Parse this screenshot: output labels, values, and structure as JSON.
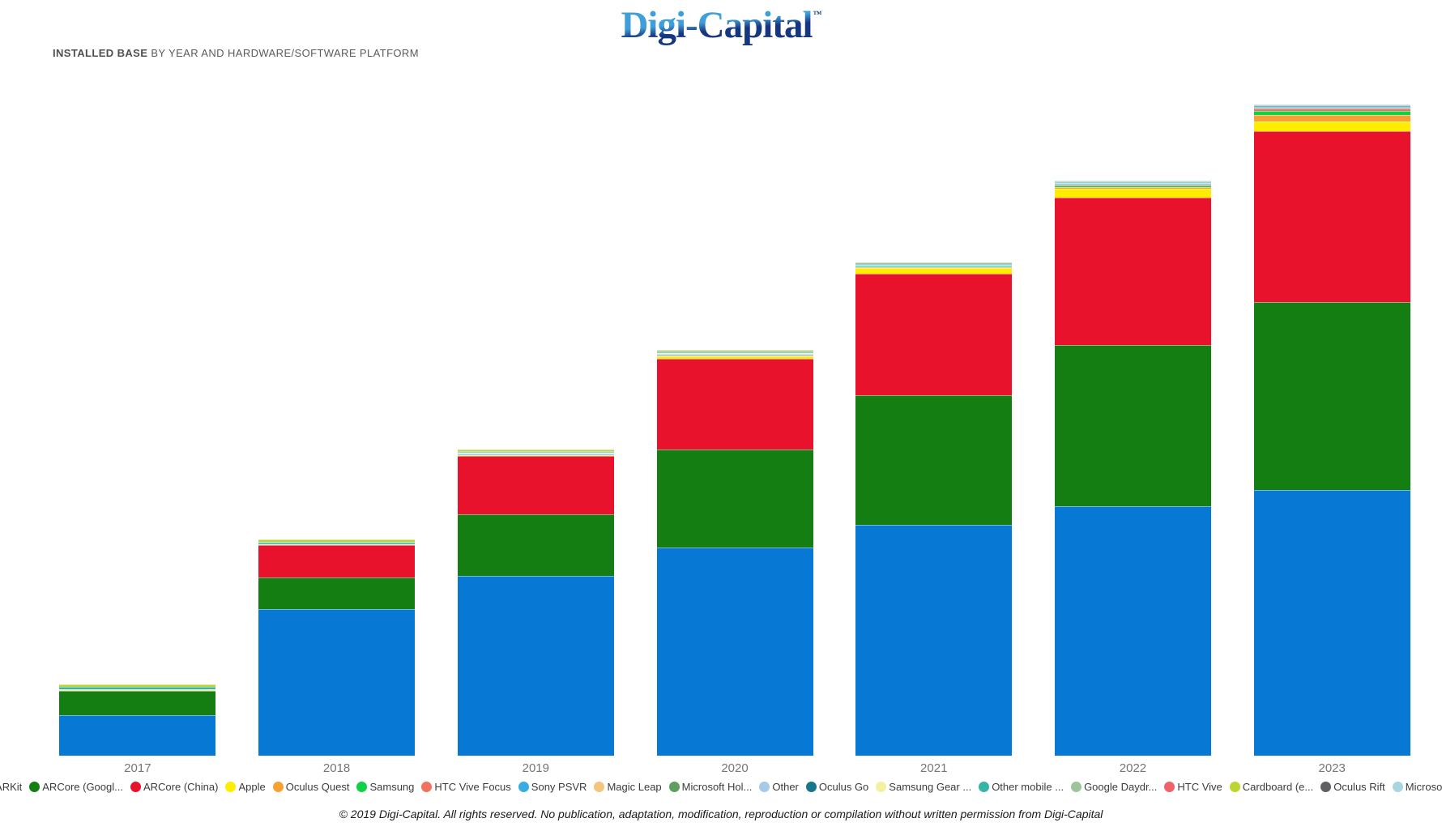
{
  "header": {
    "brand": "Digi-Capital",
    "brand_tm": "™",
    "title_bold": "INSTALLED BASE",
    "title_rest": " BY YEAR AND HARDWARE/SOFTWARE PLATFORM"
  },
  "footer": {
    "copyright": "© 2019 Digi-Capital. All rights reserved. No publication, adaptation, modification, reproduction or compilation without written permission from Digi-Capital"
  },
  "chart_data": {
    "type": "bar",
    "stacked": true,
    "title": "Installed base by year and hardware/software platform",
    "categories": [
      "2017",
      "2018",
      "2019",
      "2020",
      "2021",
      "2022",
      "2023"
    ],
    "value_unit": "relative bar height in px (chart shows no value axis, gridlines or data labels)",
    "legend_position": "bottom",
    "axes": {
      "y_axis_visible": false,
      "x_axis_labels": [
        "2017",
        "2018",
        "2019",
        "2020",
        "2021",
        "2022",
        "2023"
      ]
    },
    "series": [
      {
        "name": "ARKit",
        "color": "#0778d4",
        "values": [
          50,
          181,
          222,
          257,
          285,
          308,
          328
        ]
      },
      {
        "name": "ARCore (Googl...",
        "color": "#157e13",
        "values": [
          30,
          39,
          76,
          121,
          160,
          199,
          232
        ]
      },
      {
        "name": "ARCore (China)",
        "color": "#e8122c",
        "values": [
          0,
          40,
          72,
          112,
          150,
          182,
          211
        ]
      },
      {
        "name": "Apple",
        "color": "#ffed00",
        "values": [
          0,
          0,
          1,
          3,
          7,
          11,
          12
        ]
      },
      {
        "name": "Oculus Quest",
        "color": "#f7a133",
        "values": [
          0,
          0,
          0,
          1,
          1,
          2,
          8
        ]
      },
      {
        "name": "Samsung",
        "color": "#0fd148",
        "values": [
          0,
          0,
          0,
          0,
          1,
          2,
          5
        ]
      },
      {
        "name": "HTC Vive Focus",
        "color": "#f2705e",
        "values": [
          0,
          0,
          0,
          0,
          0,
          1,
          3
        ]
      },
      {
        "name": "Sony PSVR",
        "color": "#38ade3",
        "values": [
          0,
          0,
          1,
          1,
          1,
          1,
          1
        ]
      },
      {
        "name": "Magic Leap",
        "color": "#f5c57c",
        "values": [
          0,
          0,
          0,
          0,
          0,
          0,
          0
        ]
      },
      {
        "name": "Microsoft Hol...",
        "color": "#5e9e60",
        "values": [
          0,
          0,
          0,
          0,
          0,
          0,
          0
        ]
      },
      {
        "name": "Other",
        "color": "#a9c9ea",
        "values": [
          0,
          0,
          1,
          1,
          1,
          1,
          0
        ]
      },
      {
        "name": "Oculus Go",
        "color": "#17778a",
        "values": [
          0,
          0,
          0,
          0,
          0,
          0,
          0
        ]
      },
      {
        "name": "Samsung Gear ...",
        "color": "#f5f0a0",
        "values": [
          2,
          1,
          1,
          1,
          0,
          0,
          0
        ]
      },
      {
        "name": "Other mobile ...",
        "color": "#35b5a8",
        "values": [
          3,
          2,
          1,
          1,
          1,
          1,
          1
        ]
      },
      {
        "name": "Google Daydr...",
        "color": "#9dc49a",
        "values": [
          0,
          1,
          1,
          2,
          2,
          1,
          0
        ]
      },
      {
        "name": "HTC Vive",
        "color": "#f2606a",
        "values": [
          0,
          0,
          0,
          0,
          0,
          0,
          0
        ]
      },
      {
        "name": "Cardboard (e...",
        "color": "#bcd631",
        "values": [
          3,
          3,
          2,
          1,
          0,
          0,
          0
        ]
      },
      {
        "name": "Oculus Rift",
        "color": "#5f6062",
        "values": [
          0,
          0,
          0,
          0,
          0,
          0,
          1
        ]
      },
      {
        "name": "Microsoft ...",
        "color": "#a8d5e2",
        "values": [
          0,
          0,
          0,
          0,
          0,
          1,
          2
        ]
      }
    ]
  },
  "colors": {
    "background": "#ffffff",
    "subtitle_text": "#5a5a5a",
    "year_label": "#757575",
    "legend_text": "#3c3c3c",
    "logo_gradient_top": "#3f9fd8",
    "logo_gradient_bottom": "#16367f"
  }
}
